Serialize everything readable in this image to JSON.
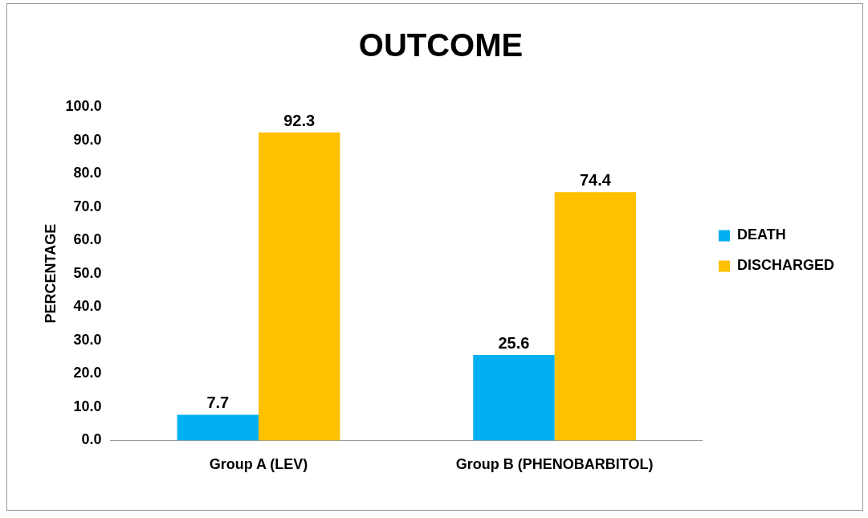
{
  "chart_data": {
    "type": "bar",
    "title": "OUTCOME",
    "ylabel": "PERCENTAGE",
    "categories": [
      "Group A (LEV)",
      "Group B (PHENOBARBITOL)"
    ],
    "series": [
      {
        "name": "DEATH",
        "color": "#00b0f0",
        "values": [
          7.7,
          25.6
        ]
      },
      {
        "name": "DISCHARGED",
        "color": "#ffc000",
        "values": [
          92.3,
          74.4
        ]
      }
    ],
    "ylim": [
      0,
      100
    ],
    "yticks": [
      {
        "value": 0,
        "label": "0.0"
      },
      {
        "value": 10,
        "label": "10.0"
      },
      {
        "value": 20,
        "label": "20.0"
      },
      {
        "value": 30,
        "label": "30.0"
      },
      {
        "value": 40,
        "label": "40.0"
      },
      {
        "value": 50,
        "label": "50.0"
      },
      {
        "value": 60,
        "label": "60.0"
      },
      {
        "value": 70,
        "label": "70.0"
      },
      {
        "value": 80,
        "label": "80.0"
      },
      {
        "value": 90,
        "label": "90.0"
      },
      {
        "value": 100,
        "label": "100.0"
      }
    ],
    "grid": false,
    "legend": "right",
    "data_labels": true
  }
}
